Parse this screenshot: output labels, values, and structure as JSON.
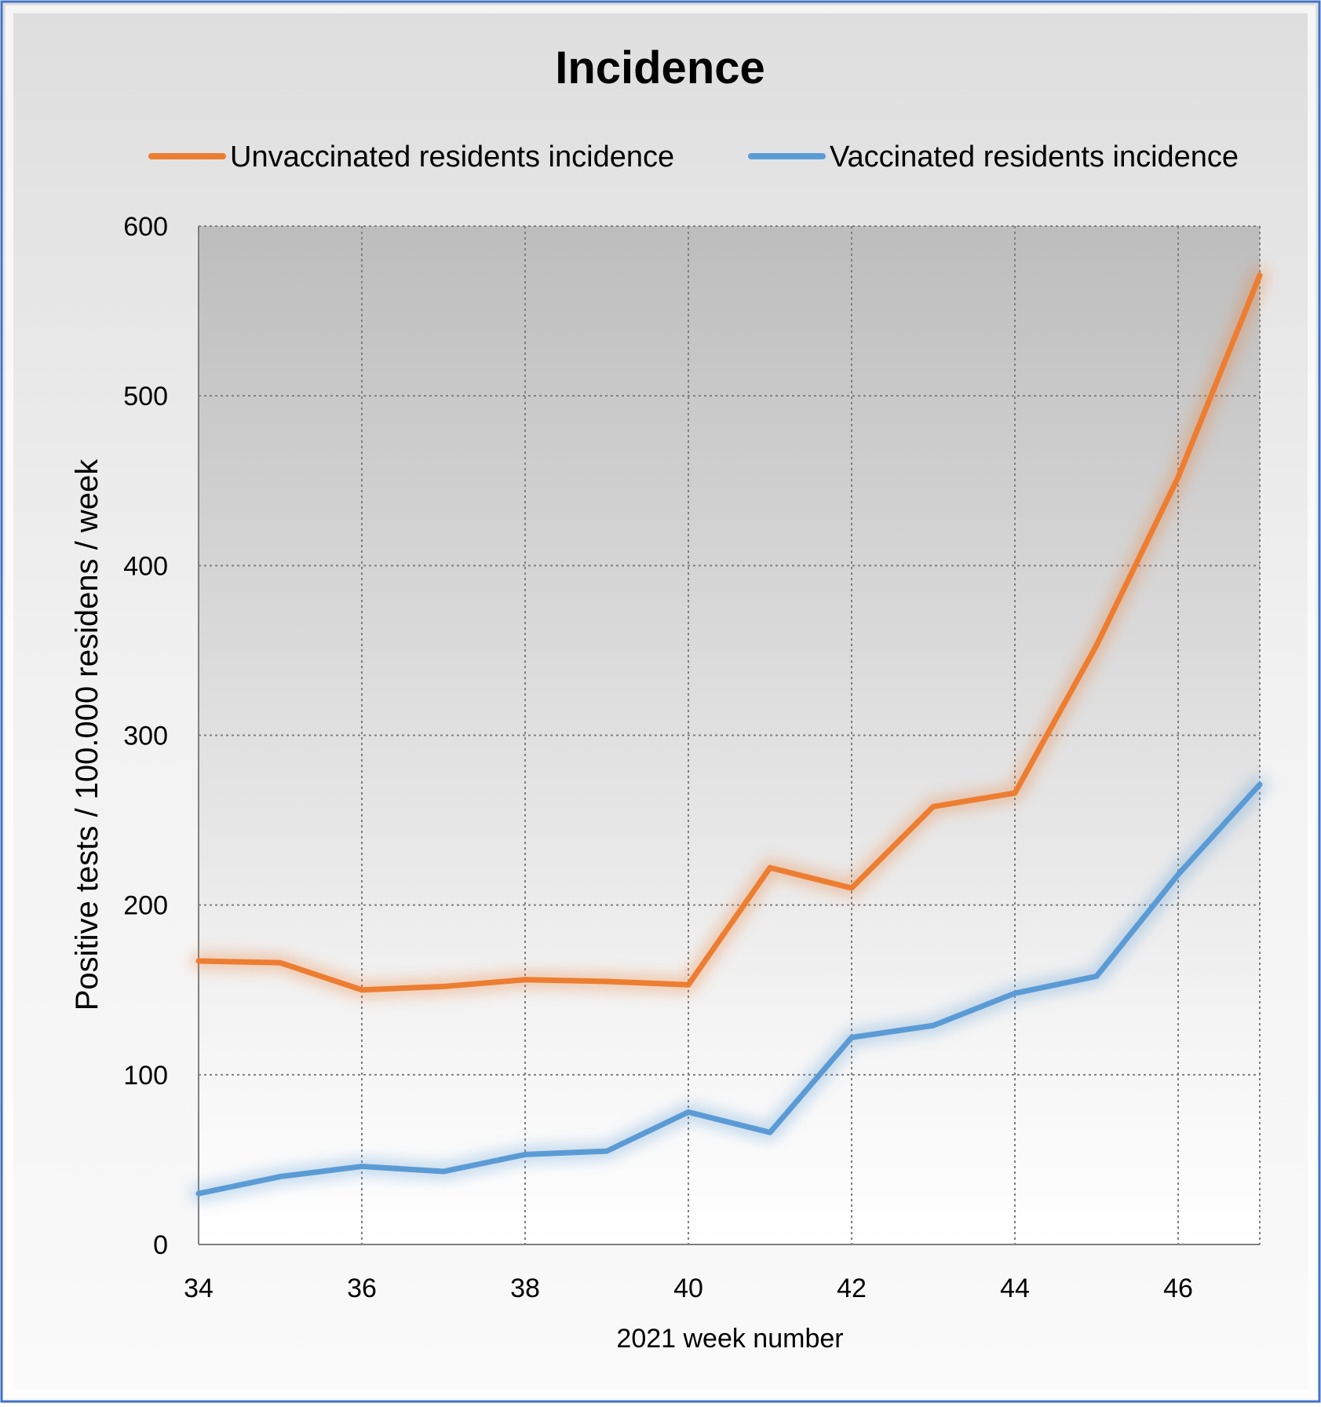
{
  "chart_data": {
    "type": "line",
    "title": "Incidence",
    "xlabel": "2021 week number",
    "ylabel": "Positive tests / 100.000 residens / week",
    "x": [
      34,
      35,
      36,
      37,
      38,
      39,
      40,
      41,
      42,
      43,
      44,
      45,
      46,
      47
    ],
    "x_ticks": [
      34,
      36,
      38,
      40,
      42,
      44,
      46
    ],
    "y_ticks": [
      0,
      100,
      200,
      300,
      400,
      500,
      600
    ],
    "xlim": [
      34,
      47
    ],
    "ylim": [
      0,
      600
    ],
    "grid": true,
    "legend_position": "top",
    "series": [
      {
        "name": "Unvaccinated residents incidence",
        "color": "#ED7D31",
        "values": [
          167,
          166,
          150,
          152,
          156,
          155,
          153,
          222,
          210,
          258,
          266,
          353,
          452,
          571
        ]
      },
      {
        "name": "Vaccinated residents incidence",
        "color": "#5B9BD5",
        "values": [
          30,
          40,
          46,
          43,
          53,
          55,
          78,
          66,
          122,
          129,
          148,
          158,
          218,
          271
        ]
      }
    ]
  }
}
